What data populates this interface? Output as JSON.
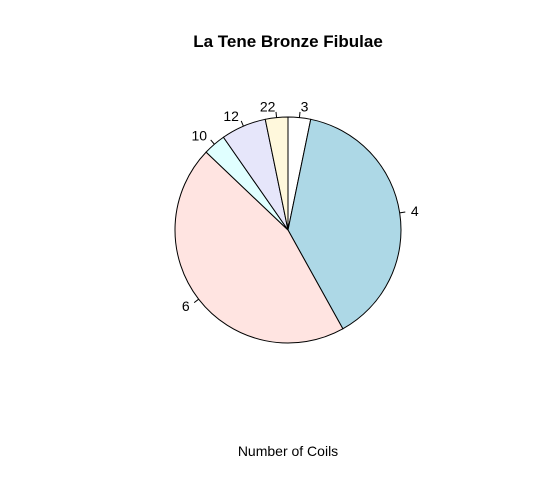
{
  "chart_data": {
    "type": "pie",
    "title": "La Tene Bronze Fibulae",
    "xlabel": "Number of Coils",
    "categories": [
      "3",
      "4",
      "6",
      "10",
      "12",
      "22"
    ],
    "values": [
      1,
      12,
      14,
      1,
      2,
      1
    ],
    "colors": [
      "#ffffff",
      "#add8e6",
      "#ffe4e1",
      "#e0ffff",
      "#e6e6fa",
      "#fff8dc"
    ],
    "start_angle_deg": 90,
    "direction": "clockwise"
  }
}
